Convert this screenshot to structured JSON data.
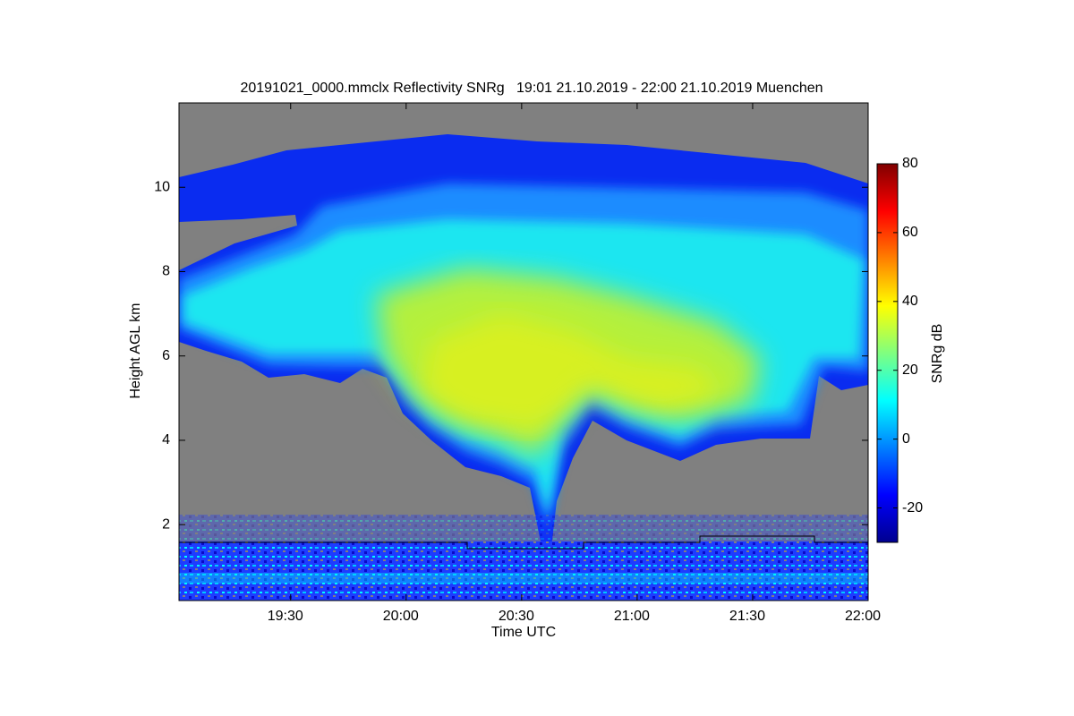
{
  "chart_data": {
    "type": "heatmap",
    "title": "20191021_0000.mmclx Reflectivity SNRg   19:01 21.10.2019 - 22:00 21.10.2019 Muenchen",
    "x_label": "Time UTC",
    "y_label": "Height AGL km",
    "xlim": [
      1141,
      1320
    ],
    "xticks": [
      {
        "value": 1170,
        "label": "19:30"
      },
      {
        "value": 1200,
        "label": "20:00"
      },
      {
        "value": 1230,
        "label": "20:30"
      },
      {
        "value": 1260,
        "label": "21:00"
      },
      {
        "value": 1290,
        "label": "21:30"
      },
      {
        "value": 1320,
        "label": "22:00"
      }
    ],
    "ylim": [
      0.2,
      12
    ],
    "yticks": [
      2,
      4,
      6,
      8,
      10
    ],
    "colorbar_label": "SNRg dB",
    "colormap": "jet",
    "clim": [
      -30,
      80
    ],
    "cticks": [
      -20,
      0,
      20,
      40,
      60,
      80
    ]
  }
}
